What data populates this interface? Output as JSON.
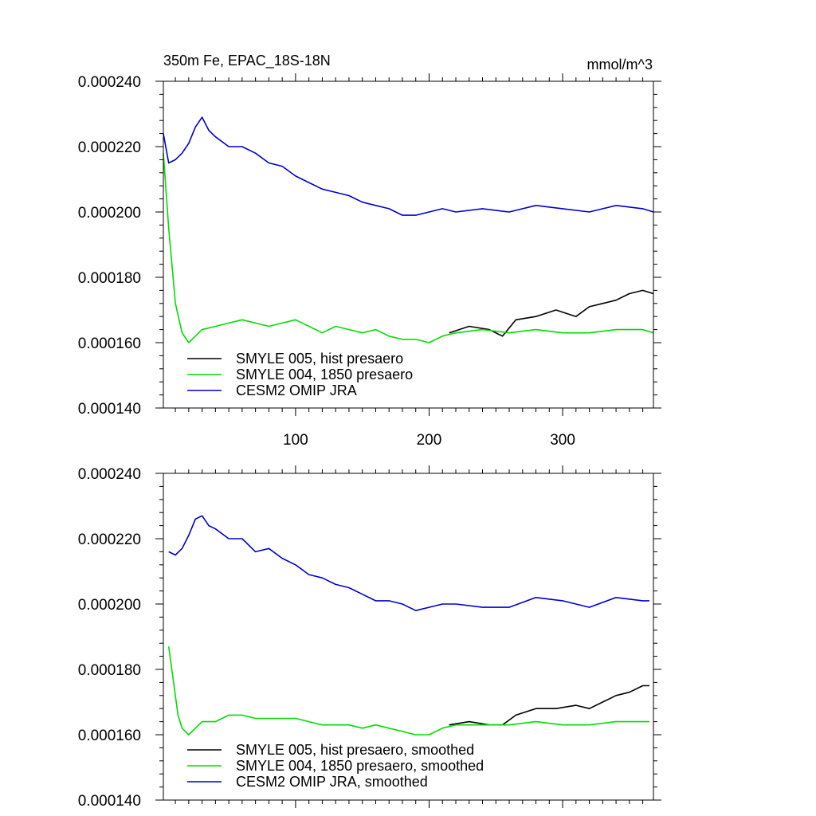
{
  "chart_data": [
    {
      "type": "line",
      "title": "350m Fe, EPAC_18S-18N",
      "units": "mmol/m^3",
      "xlabel": "",
      "ylabel": "",
      "xlim": [
        1,
        368
      ],
      "ylim": [
        0.00014,
        0.00024
      ],
      "x_ticks": [
        100,
        200,
        300
      ],
      "x_tick_labels": [
        "100",
        "200",
        "300"
      ],
      "y_ticks": [
        0.00014,
        0.00016,
        0.00018,
        0.0002,
        0.00022,
        0.00024
      ],
      "y_tick_labels": [
        "0.000140",
        "0.000160",
        "0.000180",
        "0.000200",
        "0.000220",
        "0.000240"
      ],
      "grid": false,
      "legend_position": "bottom-left",
      "series": [
        {
          "name": "SMYLE 005, hist presaero",
          "color": "#000000",
          "x": [
            215,
            230,
            245,
            255,
            265,
            280,
            295,
            310,
            320,
            330,
            340,
            350,
            360,
            368
          ],
          "y": [
            0.000163,
            0.000165,
            0.000164,
            0.000162,
            0.000167,
            0.000168,
            0.00017,
            0.000168,
            0.000171,
            0.000172,
            0.000173,
            0.000175,
            0.000176,
            0.000175
          ]
        },
        {
          "name": "SMYLE 004, 1850 presaero",
          "color": "#00dd00",
          "x": [
            1,
            5,
            10,
            15,
            20,
            25,
            30,
            40,
            50,
            60,
            70,
            80,
            90,
            100,
            110,
            120,
            130,
            140,
            150,
            160,
            170,
            180,
            190,
            200,
            210,
            220,
            240,
            260,
            280,
            300,
            320,
            340,
            360,
            368
          ],
          "y": [
            0.000218,
            0.000195,
            0.000172,
            0.000163,
            0.00016,
            0.000162,
            0.000164,
            0.000165,
            0.000166,
            0.000167,
            0.000166,
            0.000165,
            0.000166,
            0.000167,
            0.000165,
            0.000163,
            0.000165,
            0.000164,
            0.000163,
            0.000164,
            0.000162,
            0.000161,
            0.000161,
            0.00016,
            0.000162,
            0.000163,
            0.000164,
            0.000163,
            0.000164,
            0.000163,
            0.000163,
            0.000164,
            0.000164,
            0.000163
          ]
        },
        {
          "name": "CESM2 OMIP JRA",
          "color": "#0000cc",
          "x": [
            1,
            5,
            10,
            15,
            20,
            25,
            30,
            35,
            40,
            50,
            60,
            70,
            80,
            90,
            100,
            110,
            120,
            130,
            140,
            150,
            160,
            170,
            180,
            190,
            200,
            210,
            220,
            240,
            260,
            280,
            300,
            320,
            340,
            360,
            368
          ],
          "y": [
            0.000224,
            0.000215,
            0.000216,
            0.000218,
            0.000221,
            0.000226,
            0.000229,
            0.000225,
            0.000223,
            0.00022,
            0.00022,
            0.000218,
            0.000215,
            0.000214,
            0.000211,
            0.000209,
            0.000207,
            0.000206,
            0.000205,
            0.000203,
            0.000202,
            0.000201,
            0.000199,
            0.000199,
            0.0002,
            0.000201,
            0.0002,
            0.000201,
            0.0002,
            0.000202,
            0.000201,
            0.0002,
            0.000202,
            0.000201,
            0.0002
          ]
        }
      ]
    },
    {
      "type": "line",
      "title": "",
      "xlabel": "",
      "ylabel": "",
      "xlim": [
        1,
        368
      ],
      "ylim": [
        0.00014,
        0.00024
      ],
      "x_ticks": [
        100,
        200,
        300
      ],
      "x_tick_labels": [],
      "y_ticks": [
        0.00014,
        0.00016,
        0.00018,
        0.0002,
        0.00022,
        0.00024
      ],
      "y_tick_labels": [
        "0.000140",
        "0.000160",
        "0.000180",
        "0.000200",
        "0.000220",
        "0.000240"
      ],
      "grid": false,
      "legend_position": "bottom-left",
      "series": [
        {
          "name": "SMYLE 005, hist presaero, smoothed",
          "color": "#000000",
          "x": [
            215,
            230,
            245,
            255,
            265,
            280,
            295,
            310,
            320,
            330,
            340,
            350,
            360,
            365
          ],
          "y": [
            0.000163,
            0.000164,
            0.000163,
            0.000163,
            0.000166,
            0.000168,
            0.000168,
            0.000169,
            0.000168,
            0.00017,
            0.000172,
            0.000173,
            0.000175,
            0.000175
          ]
        },
        {
          "name": "SMYLE 004, 1850 presaero, smoothed",
          "color": "#00dd00",
          "x": [
            5,
            8,
            12,
            15,
            20,
            25,
            30,
            40,
            50,
            60,
            70,
            80,
            90,
            100,
            110,
            120,
            130,
            140,
            150,
            160,
            170,
            180,
            190,
            200,
            210,
            220,
            240,
            260,
            280,
            300,
            320,
            340,
            360,
            365
          ],
          "y": [
            0.000187,
            0.000178,
            0.000166,
            0.000162,
            0.00016,
            0.000162,
            0.000164,
            0.000164,
            0.000166,
            0.000166,
            0.000165,
            0.000165,
            0.000165,
            0.000165,
            0.000164,
            0.000163,
            0.000163,
            0.000163,
            0.000162,
            0.000163,
            0.000162,
            0.000161,
            0.00016,
            0.00016,
            0.000162,
            0.000163,
            0.000163,
            0.000163,
            0.000164,
            0.000163,
            0.000163,
            0.000164,
            0.000164,
            0.000164
          ]
        },
        {
          "name": "CESM2 OMIP JRA, smoothed",
          "color": "#0000cc",
          "x": [
            5,
            10,
            15,
            20,
            25,
            30,
            35,
            40,
            50,
            60,
            70,
            80,
            90,
            100,
            110,
            120,
            130,
            140,
            150,
            160,
            170,
            180,
            190,
            200,
            210,
            220,
            240,
            260,
            280,
            300,
            320,
            340,
            360,
            365
          ],
          "y": [
            0.000216,
            0.000215,
            0.000217,
            0.000221,
            0.000226,
            0.000227,
            0.000224,
            0.000223,
            0.00022,
            0.00022,
            0.000216,
            0.000217,
            0.000214,
            0.000212,
            0.000209,
            0.000208,
            0.000206,
            0.000205,
            0.000203,
            0.000201,
            0.000201,
            0.0002,
            0.000198,
            0.000199,
            0.0002,
            0.0002,
            0.000199,
            0.000199,
            0.000202,
            0.000201,
            0.000199,
            0.000202,
            0.000201,
            0.000201
          ]
        }
      ]
    }
  ]
}
